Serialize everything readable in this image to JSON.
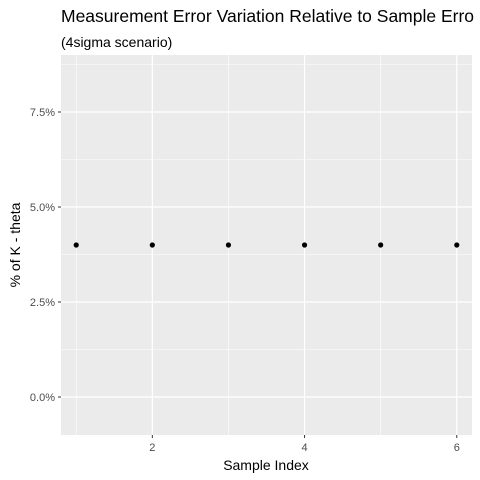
{
  "chart_data": {
    "type": "scatter",
    "title": "Measurement Error Variation Relative to Sample Erro",
    "subtitle": "(4sigma scenario)",
    "xlabel": "Sample Index",
    "ylabel": "% of K - theta",
    "x": [
      1,
      2,
      3,
      4,
      5,
      6
    ],
    "y": [
      4.0,
      4.0,
      4.0,
      4.0,
      4.0,
      4.0
    ],
    "xlim": [
      0.8,
      6.2
    ],
    "ylim": [
      -1.0,
      9.0
    ],
    "x_ticks": [
      2,
      4,
      6
    ],
    "x_tick_labels": [
      "2",
      "4",
      "6"
    ],
    "y_ticks": [
      0.0,
      2.5,
      5.0,
      7.5
    ],
    "y_tick_labels": [
      "0.0%",
      "2.5%",
      "5.0%",
      "7.5%"
    ],
    "grid": true,
    "legend": "none",
    "colors": {
      "panel_background": "#ebebeb",
      "grid_major": "#ffffff",
      "point": "#000000",
      "tick_text": "#4d4d4d"
    }
  }
}
